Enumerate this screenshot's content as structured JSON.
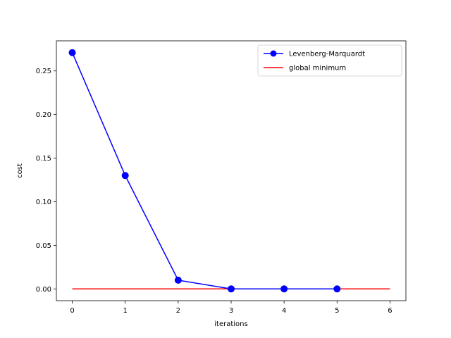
{
  "chart_data": {
    "type": "line",
    "title": "",
    "xlabel": "iterations",
    "ylabel": "cost",
    "xlim": [
      -0.3,
      6.3
    ],
    "ylim": [
      -0.0135,
      0.2845
    ],
    "xticks": [
      0,
      1,
      2,
      3,
      4,
      5,
      6
    ],
    "xtick_labels": [
      "0",
      "1",
      "2",
      "3",
      "4",
      "5",
      "6"
    ],
    "yticks": [
      0.0,
      0.05,
      0.1,
      0.15,
      0.2,
      0.25
    ],
    "ytick_labels": [
      "0.00",
      "0.05",
      "0.10",
      "0.15",
      "0.20",
      "0.25"
    ],
    "grid": false,
    "legend_position": "top-right",
    "series": [
      {
        "name": "Levenberg-Marquardt",
        "color": "#0000ff",
        "marker": "circle",
        "x": [
          0,
          1,
          2,
          3,
          4,
          5
        ],
        "values": [
          0.271,
          0.13,
          0.01,
          0.0,
          0.0,
          0.0
        ]
      },
      {
        "name": "global minimum",
        "color": "#ff0000",
        "marker": "none",
        "x": [
          0,
          6
        ],
        "values": [
          0.0,
          0.0
        ]
      }
    ]
  }
}
